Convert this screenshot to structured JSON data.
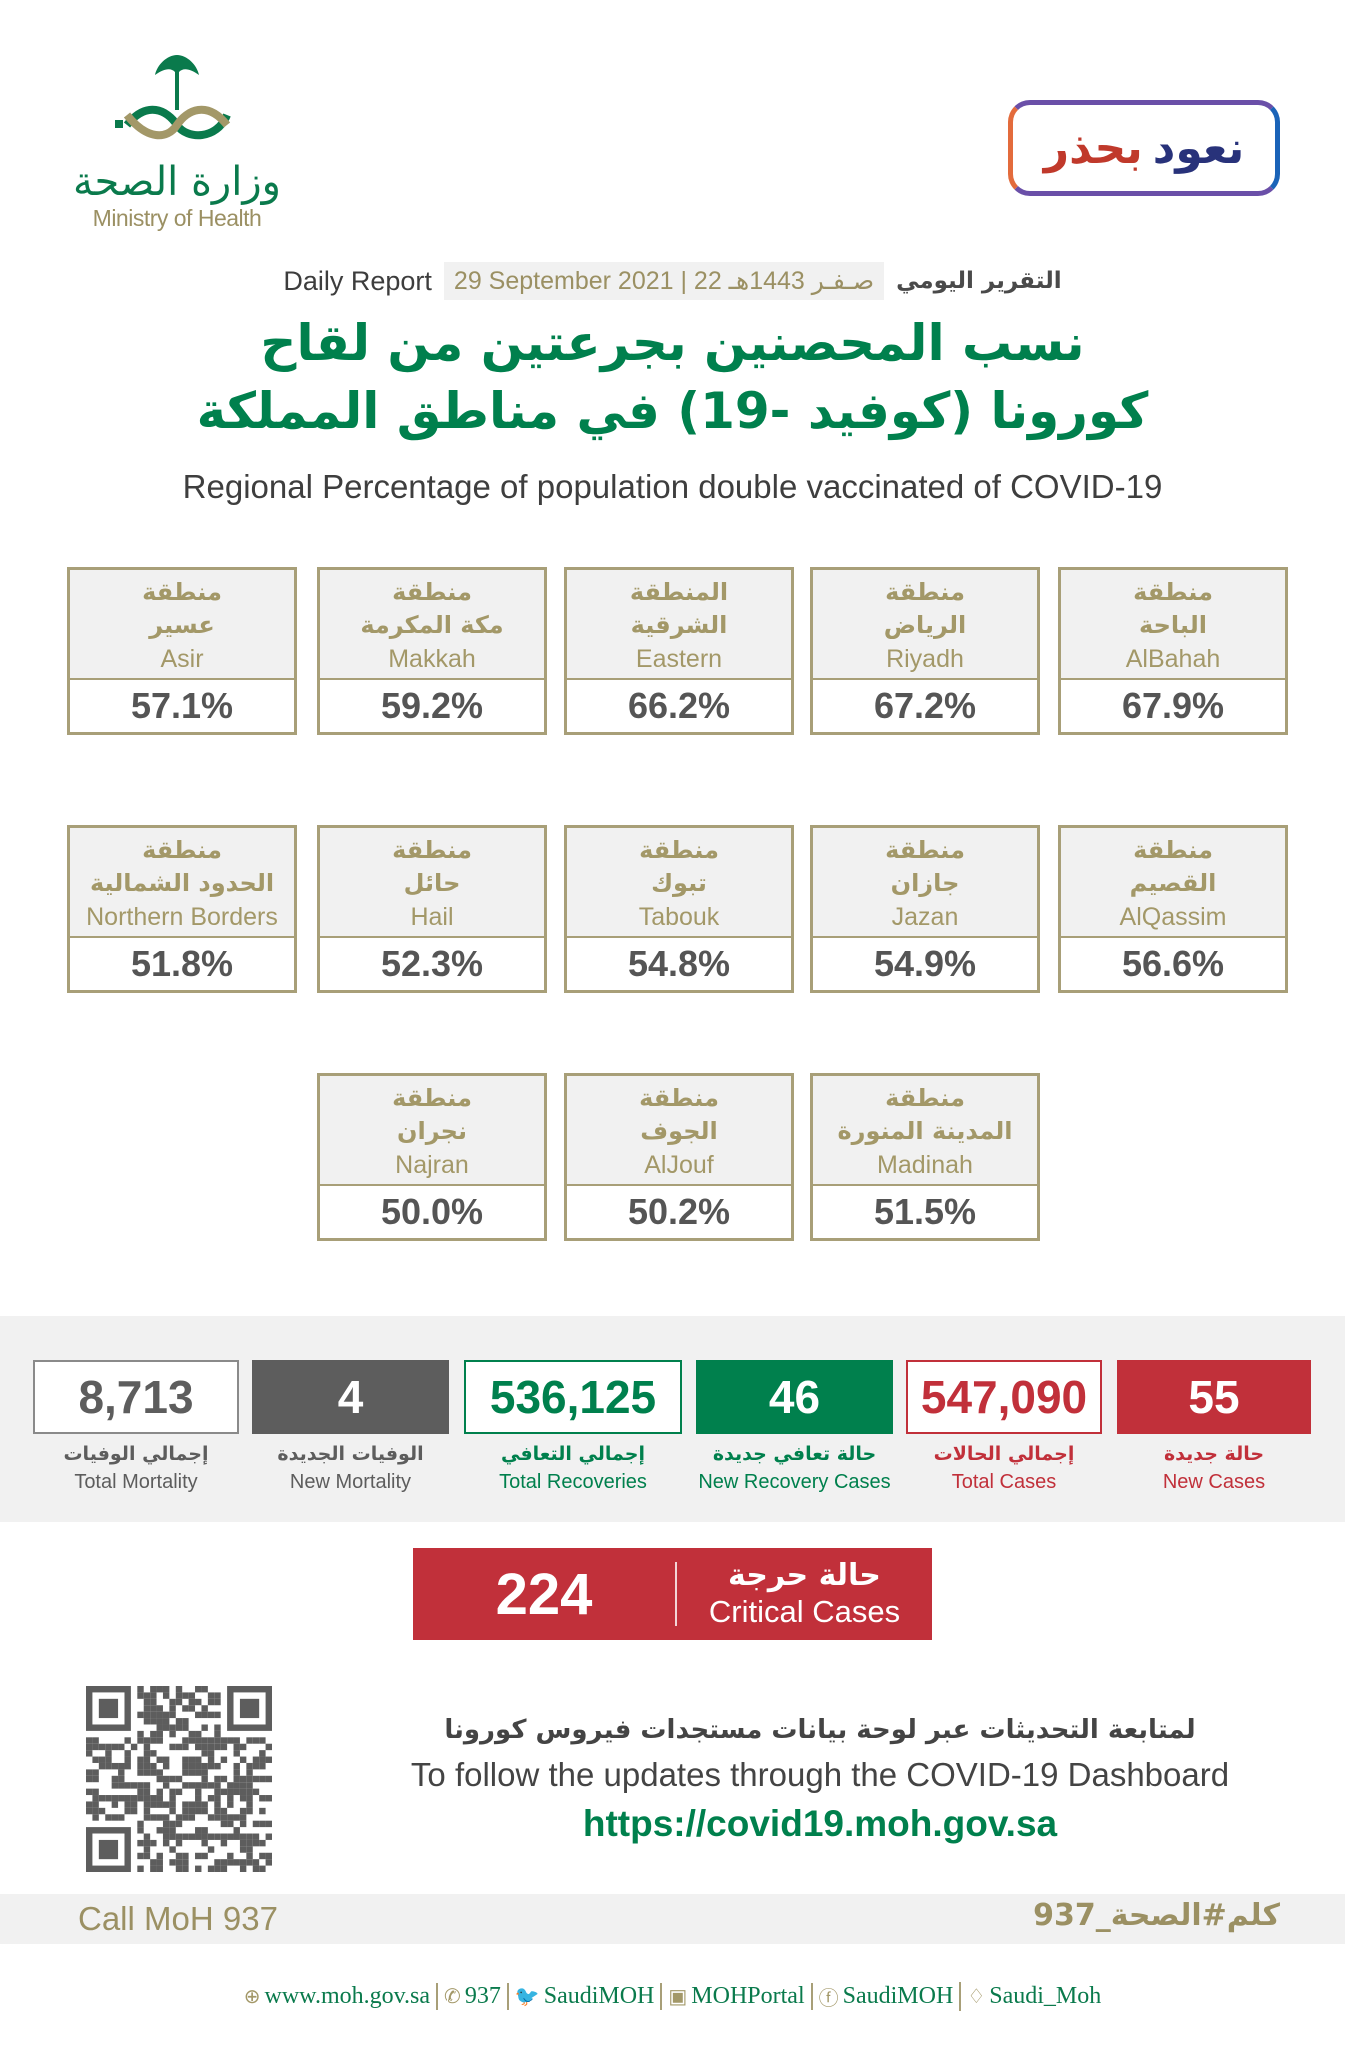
{
  "header": {
    "logo_ar": "وزارة الصحة",
    "logo_en": "Ministry of Health",
    "slogan_part1": "نعود",
    "slogan_part2": "بحذر",
    "daily_en": "Daily Report",
    "date": "29 September 2021 | 22 صـفـر 1443هـ",
    "daily_ar": "التقرير اليومي"
  },
  "title": {
    "line1": "نسب المحصنين بجرعتين من لقاح",
    "line2": "كورونا (كوفيد -19) في مناطق المملكة",
    "subtitle": "Regional Percentage of population double vaccinated of COVID-19"
  },
  "regions": [
    {
      "l1": "منطقة",
      "l2": "عسير",
      "en": "Asir",
      "value": "57.1%"
    },
    {
      "l1": "منطقة",
      "l2": "مكة المكرمة",
      "en": "Makkah",
      "value": "59.2%"
    },
    {
      "l1": "المنطقة",
      "l2": "الشرقية",
      "en": "Eastern",
      "value": "66.2%"
    },
    {
      "l1": "منطقة",
      "l2": "الرياض",
      "en": "Riyadh",
      "value": "67.2%"
    },
    {
      "l1": "منطقة",
      "l2": "الباحة",
      "en": "AlBahah",
      "value": "67.9%"
    },
    {
      "l1": "منطقة",
      "l2": "الحدود الشمالية",
      "en": "Northern Borders",
      "value": "51.8%"
    },
    {
      "l1": "منطقة",
      "l2": "حائل",
      "en": "Hail",
      "value": "52.3%"
    },
    {
      "l1": "منطقة",
      "l2": "تبوك",
      "en": "Tabouk",
      "value": "54.8%"
    },
    {
      "l1": "منطقة",
      "l2": "جازان",
      "en": "Jazan",
      "value": "54.9%"
    },
    {
      "l1": "منطقة",
      "l2": "القصيم",
      "en": "AlQassim",
      "value": "56.6%"
    },
    {
      "l1": "منطقة",
      "l2": "نجران",
      "en": "Najran",
      "value": "50.0%"
    },
    {
      "l1": "منطقة",
      "l2": "الجوف",
      "en": "AlJouf",
      "value": "50.2%"
    },
    {
      "l1": "منطقة",
      "l2": "المدينة المنورة",
      "en": "Madinah",
      "value": "51.5%"
    }
  ],
  "stats": [
    {
      "value": "8,713",
      "ar": "إجمالي الوفيات",
      "en": "Total Mortality",
      "style": "outline",
      "color": "#5d5d5d"
    },
    {
      "value": "4",
      "ar": "الوفيات الجديدة",
      "en": "New Mortality",
      "style": "filled",
      "color": "#5d5d5d"
    },
    {
      "value": "536,125",
      "ar": "إجمالي التعافي",
      "en": "Total Recoveries",
      "style": "outline",
      "color": "#00804d"
    },
    {
      "value": "46",
      "ar": "حالة تعافي جديدة",
      "en": "New Recovery Cases",
      "style": "filled",
      "color": "#00804d"
    },
    {
      "value": "547,090",
      "ar": "إجمالي الحالات",
      "en": "Total Cases",
      "style": "outline",
      "color": "#c1303a"
    },
    {
      "value": "55",
      "ar": "حالة جديدة",
      "en": "New Cases",
      "style": "filled",
      "color": "#c1303a"
    }
  ],
  "critical": {
    "value": "224",
    "ar": "حالة حرجة",
    "en": "Critical Cases"
  },
  "follow": {
    "ar": "لمتابعة التحديثات عبر لوحة بيانات مستجدات فيروس كورونا",
    "en": "To follow the updates through the COVID-19 Dashboard",
    "url": "https://covid19.moh.gov.sa"
  },
  "footer": {
    "call": "Call MoH 937",
    "hashtag": "كلم#الصحة_937",
    "social": [
      {
        "icon": "globe-icon",
        "glyph": "⊕",
        "text": "www.moh.gov.sa"
      },
      {
        "icon": "phone-icon",
        "glyph": "✆",
        "text": "937"
      },
      {
        "icon": "twitter-icon",
        "glyph": "🐦",
        "text": "SaudiMOH"
      },
      {
        "icon": "youtube-icon",
        "glyph": "▣",
        "text": "MOHPortal"
      },
      {
        "icon": "facebook-icon",
        "glyph": "ⓕ",
        "text": "SaudiMOH"
      },
      {
        "icon": "snapchat-icon",
        "glyph": "♢",
        "text": "Saudi_Moh"
      }
    ]
  }
}
